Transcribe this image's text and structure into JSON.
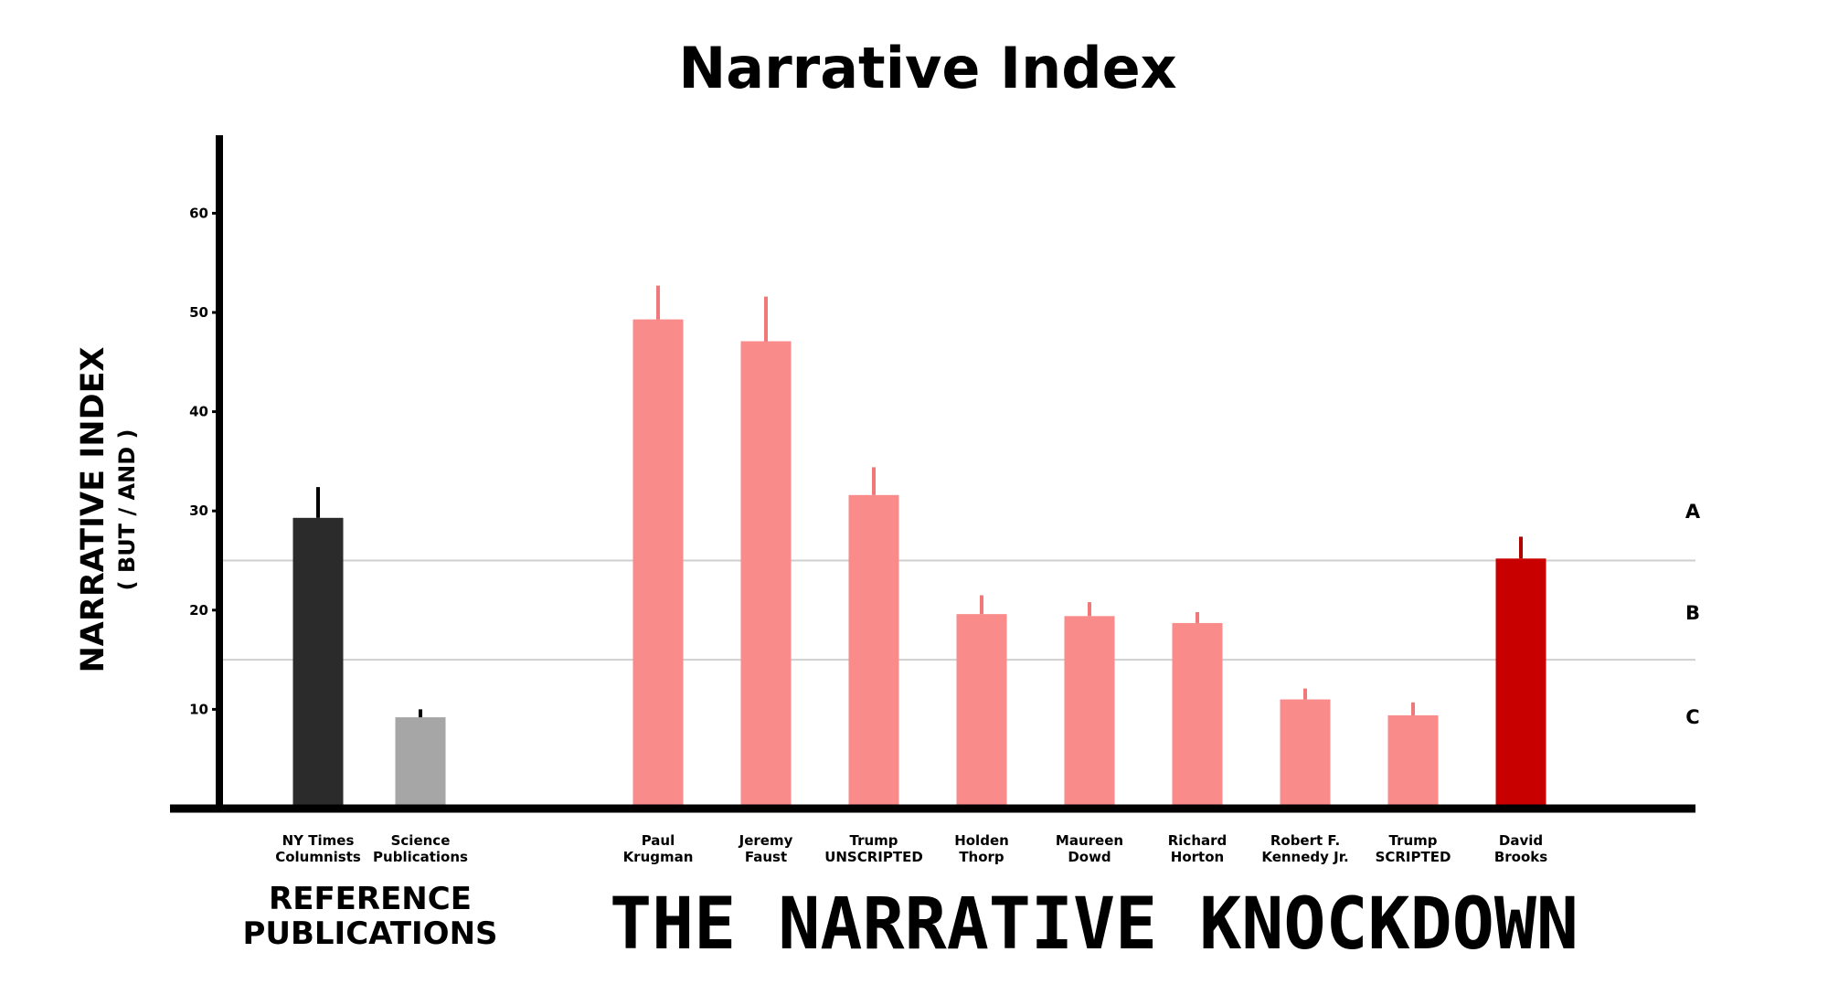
{
  "chart_data": {
    "type": "bar",
    "title": "Narrative Index",
    "ylabel": "NARRATIVE INDEX",
    "ylabel_sub": "( BUT / AND )",
    "ylim": [
      0,
      68
    ],
    "yticks": [
      10,
      20,
      30,
      40,
      50,
      60
    ],
    "grid": false,
    "categories": [
      "NY Times Columnists",
      "Science Publications",
      "Paul Krugman",
      "Jeremy Faust",
      "Trump UNSCRIPTED",
      "Holden Thorp",
      "Maureen Dowd",
      "Richard Horton",
      "Robert F. Kennedy Jr.",
      "Trump SCRIPTED",
      "David Brooks"
    ],
    "category_lines": [
      [
        "NY Times",
        "Columnists"
      ],
      [
        "Science",
        "Publications"
      ],
      [
        "Paul",
        "Krugman"
      ],
      [
        "Jeremy",
        "Faust"
      ],
      [
        "Trump",
        "UNSCRIPTED"
      ],
      [
        "Holden",
        "Thorp"
      ],
      [
        "Maureen",
        "Dowd"
      ],
      [
        "Richard",
        "Horton"
      ],
      [
        "Robert F.",
        "Kennedy Jr."
      ],
      [
        "Trump",
        "SCRIPTED"
      ],
      [
        "David",
        "Brooks"
      ]
    ],
    "values": [
      29.3,
      9.2,
      49.3,
      47.1,
      31.6,
      19.6,
      19.4,
      18.7,
      11.0,
      9.4,
      25.2
    ],
    "error_upper": [
      32.4,
      10.0,
      52.7,
      51.6,
      34.4,
      21.5,
      20.8,
      19.8,
      12.1,
      10.7,
      27.4
    ],
    "colors": [
      "#2b2b2b",
      "#a6a6a6",
      "#fa8b8b",
      "#fa8b8b",
      "#fa8b8b",
      "#fa8b8b",
      "#fa8b8b",
      "#fa8b8b",
      "#fa8b8b",
      "#fa8b8b",
      "#c80000"
    ],
    "error_colors": [
      "#000000",
      "#000000",
      "#f07878",
      "#f07878",
      "#f07878",
      "#f07878",
      "#f07878",
      "#f07878",
      "#f07878",
      "#f07878",
      "#b00000"
    ],
    "threshold_lines": [
      25,
      15
    ],
    "grades": [
      {
        "label": "A",
        "value": 30.0
      },
      {
        "label": "B",
        "value": 19.8
      },
      {
        "label": "C",
        "value": 9.3
      }
    ],
    "groups": {
      "reference": [
        "REFERENCE",
        "PUBLICATIONS"
      ],
      "knockdown": "THE NARRATIVE KNOCKDOWN"
    }
  }
}
